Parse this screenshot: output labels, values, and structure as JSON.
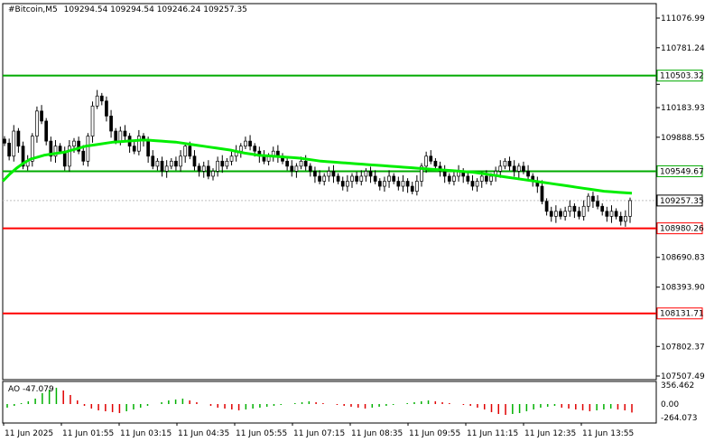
{
  "header": {
    "symbol": "#Bitcoin,M5",
    "ohlc": "109294.54 109294.54 109246.24 109257.35"
  },
  "indicator": {
    "label": "AO -47.079"
  },
  "colors": {
    "green_line": "#00cc00",
    "red_line": "#ff0000",
    "ma": "#00ee00",
    "ao_up": "#00b000",
    "ao_down": "#e00000"
  },
  "chart_data": {
    "type": "candlestick",
    "y_range": [
      107507.49,
      111076.99
    ],
    "y_ticks": [
      111076.99,
      110781.24,
      110416.26,
      110183.93,
      109888.55,
      109573.34,
      109257.35,
      108980.26,
      108690.83,
      108393.9,
      108114.96,
      107802.37,
      107507.49
    ],
    "y_tick_labels": [
      "111076.99",
      "110781.24",
      "",
      "110183.93",
      "109888.55",
      "",
      "",
      "",
      "108690.83",
      "108393.90",
      "",
      "107802.37",
      "107507.49"
    ],
    "x_tick_labels": [
      "11 Jun 2025",
      "11 Jun 01:55",
      "11 Jun 03:15",
      "11 Jun 04:35",
      "11 Jun 05:55",
      "11 Jun 07:15",
      "11 Jun 08:35",
      "11 Jun 09:55",
      "11 Jun 11:15",
      "11 Jun 12:35",
      "11 Jun 13:55"
    ],
    "horizontal_levels": [
      {
        "value": 110503.32,
        "label": "110503.32",
        "color": "#00aa00"
      },
      {
        "value": 109549.67,
        "label": "109549.67",
        "color": "#00aa00"
      },
      {
        "value": 108980.26,
        "label": "108980.26",
        "color": "#ff0000"
      },
      {
        "value": 108131.71,
        "label": "108131.71",
        "color": "#ff0000"
      }
    ],
    "current_price": {
      "value": 109257.35,
      "label": "109257.35"
    },
    "candles_close": [
      109830,
      109700,
      109950,
      109800,
      109600,
      109650,
      109900,
      110150,
      110050,
      109850,
      109700,
      109800,
      109750,
      109600,
      109800,
      109850,
      109750,
      109650,
      109900,
      110200,
      110300,
      110250,
      110100,
      109950,
      109850,
      109950,
      109900,
      109800,
      109750,
      109900,
      109850,
      109700,
      109600,
      109650,
      109550,
      109600,
      109650,
      109600,
      109700,
      109800,
      109700,
      109600,
      109550,
      109600,
      109500,
      109550,
      109650,
      109600,
      109650,
      109700,
      109750,
      109800,
      109850,
      109800,
      109750,
      109700,
      109650,
      109700,
      109750,
      109700,
      109650,
      109600,
      109550,
      109600,
      109650,
      109600,
      109550,
      109500,
      109450,
      109500,
      109550,
      109500,
      109450,
      109400,
      109450,
      109500,
      109450,
      109500,
      109550,
      109500,
      109450,
      109400,
      109450,
      109500,
      109450,
      109400,
      109450,
      109400,
      109350,
      109450,
      109600,
      109700,
      109650,
      109600,
      109550,
      109500,
      109450,
      109500,
      109550,
      109500,
      109450,
      109400,
      109450,
      109500,
      109450,
      109500,
      109550,
      109600,
      109650,
      109600,
      109550,
      109600,
      109550,
      109500,
      109450,
      109400,
      109250,
      109150,
      109100,
      109150,
      109100,
      109150,
      109200,
      109150,
      109100,
      109200,
      109300,
      109250,
      109200,
      109150,
      109100,
      109150,
      109100,
      109050,
      109100,
      109257
    ],
    "ma_values": [
      109450,
      109520,
      109580,
      109630,
      109670,
      109690,
      109710,
      109720,
      109730,
      109740,
      109760,
      109780,
      109800,
      109810,
      109820,
      109830,
      109840,
      109845,
      109850,
      109855,
      109860,
      109860,
      109855,
      109850,
      109845,
      109840,
      109830,
      109820,
      109810,
      109800,
      109790,
      109780,
      109770,
      109760,
      109745,
      109730,
      109720,
      109710,
      109705,
      109700,
      109695,
      109690,
      109685,
      109680,
      109670,
      109660,
      109650,
      109645,
      109640,
      109635,
      109630,
      109625,
      109620,
      109615,
      109610,
      109605,
      109600,
      109595,
      109590,
      109585,
      109580,
      109575,
      109570,
      109565,
      109560,
      109555,
      109550,
      109545,
      109540,
      109530,
      109520,
      109510,
      109500,
      109490,
      109480,
      109470,
      109460,
      109450,
      109440,
      109430,
      109420,
      109410,
      109400,
      109390,
      109380,
      109370,
      109360,
      109350,
      109345,
      109340,
      109335,
      109330
    ],
    "ao_values": [
      -20,
      -10,
      5,
      15,
      30,
      60,
      80,
      90,
      75,
      50,
      20,
      -10,
      -25,
      -35,
      -40,
      -45,
      -50,
      -40,
      -30,
      -20,
      -10,
      0,
      10,
      20,
      25,
      30,
      20,
      10,
      0,
      -10,
      -20,
      -25,
      -30,
      -35,
      -30,
      -25,
      -20,
      -15,
      -10,
      -5,
      0,
      5,
      10,
      15,
      10,
      5,
      0,
      -5,
      -10,
      -15,
      -20,
      -25,
      -20,
      -15,
      -10,
      -5,
      0,
      5,
      10,
      15,
      20,
      15,
      10,
      5,
      0,
      -5,
      -10,
      -20,
      -30,
      -45,
      -55,
      -60,
      -55,
      -50,
      -40,
      -30,
      -20,
      -15,
      -10,
      -20,
      -25,
      -30,
      -35,
      -40,
      -35,
      -30,
      -25,
      -30,
      -35,
      -47
    ]
  }
}
